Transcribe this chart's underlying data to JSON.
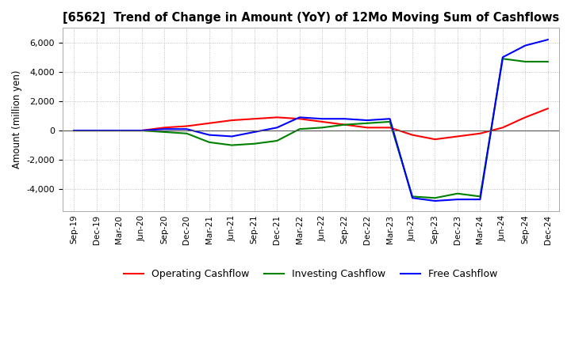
{
  "title": "[6562]  Trend of Change in Amount (YoY) of 12Mo Moving Sum of Cashflows",
  "ylabel": "Amount (million yen)",
  "x_labels": [
    "Sep-19",
    "Dec-19",
    "Mar-20",
    "Jun-20",
    "Sep-20",
    "Dec-20",
    "Mar-21",
    "Jun-21",
    "Sep-21",
    "Dec-21",
    "Mar-22",
    "Jun-22",
    "Sep-22",
    "Dec-22",
    "Mar-23",
    "Jun-23",
    "Sep-23",
    "Dec-23",
    "Mar-24",
    "Jun-24",
    "Sep-24",
    "Dec-24"
  ],
  "operating": [
    0,
    0,
    0,
    0,
    200,
    300,
    500,
    700,
    800,
    900,
    800,
    600,
    400,
    200,
    200,
    -300,
    -600,
    -400,
    -200,
    200,
    900,
    1500
  ],
  "investing": [
    0,
    0,
    0,
    0,
    -100,
    -200,
    -800,
    -1000,
    -900,
    -700,
    100,
    200,
    400,
    500,
    600,
    -4500,
    -4600,
    -4300,
    -4500,
    4900,
    4700,
    4700
  ],
  "free": [
    0,
    0,
    0,
    0,
    100,
    100,
    -300,
    -400,
    -100,
    200,
    900,
    800,
    800,
    700,
    800,
    -4600,
    -4800,
    -4700,
    -4700,
    5000,
    5800,
    6200
  ],
  "ylim": [
    -5500,
    7000
  ],
  "yticks": [
    -4000,
    -2000,
    0,
    2000,
    4000,
    6000
  ],
  "colors": {
    "operating": "#ff0000",
    "investing": "#008000",
    "free": "#0000ff"
  },
  "legend_labels": [
    "Operating Cashflow",
    "Investing Cashflow",
    "Free Cashflow"
  ],
  "grid_color": "#b0b0b0",
  "grid_style": "dotted",
  "bg_color": "#ffffff"
}
